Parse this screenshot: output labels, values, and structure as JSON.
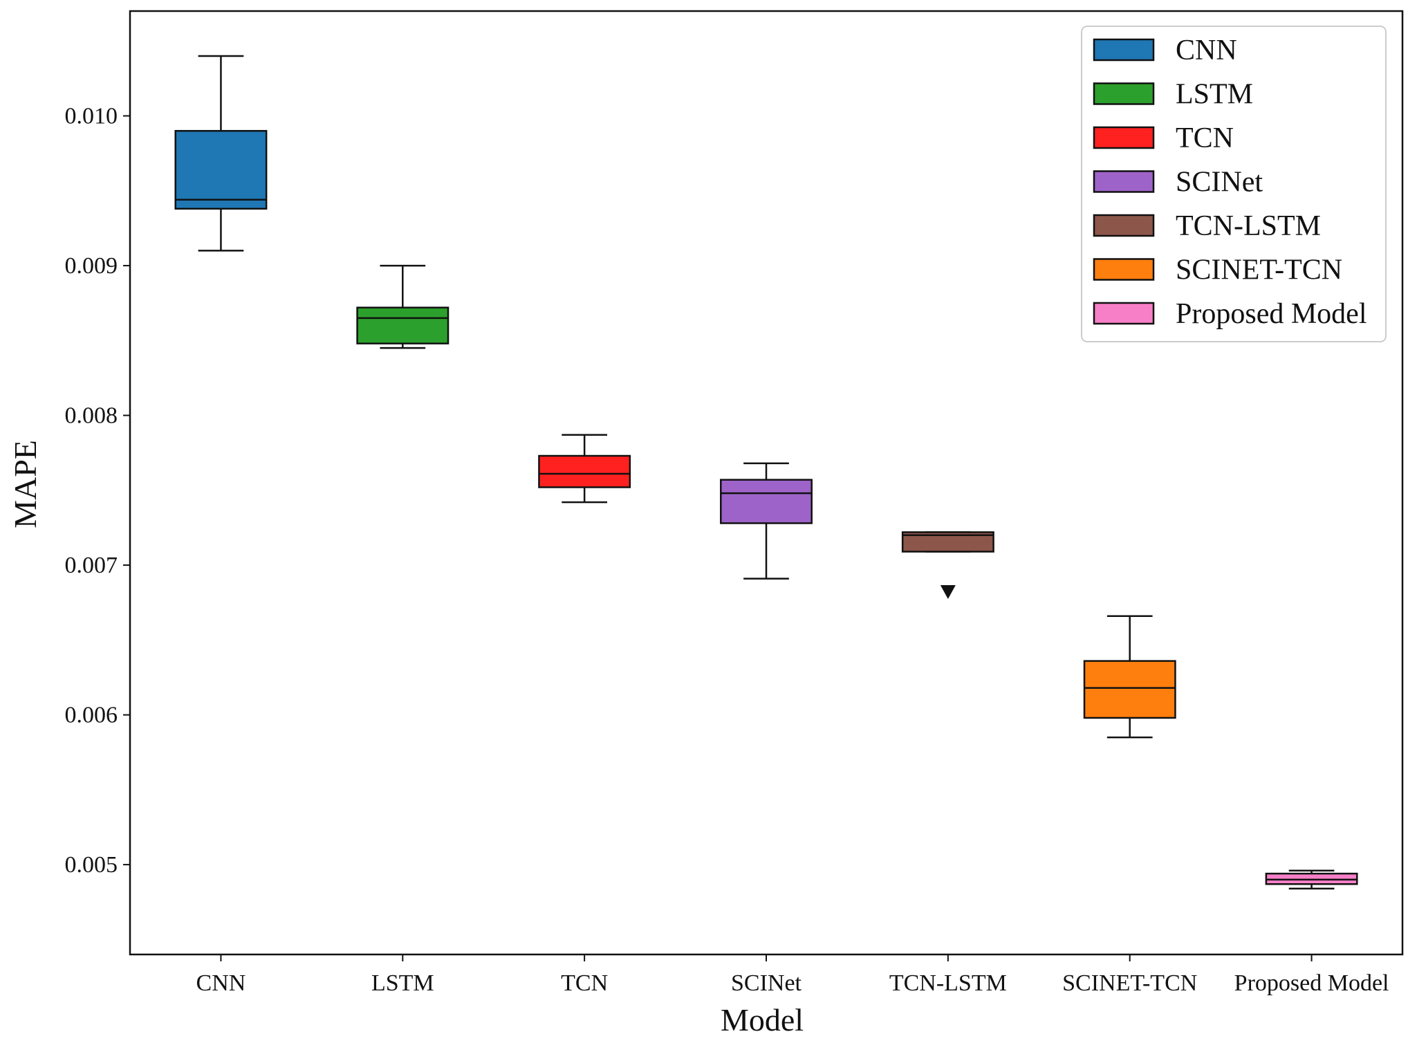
{
  "chart_data": {
    "type": "box",
    "title": "",
    "xlabel": "Model",
    "ylabel": "MAPE",
    "ylim": [
      0.0044,
      0.0107
    ],
    "yticks": [
      0.005,
      0.006,
      0.007,
      0.008,
      0.009,
      0.01
    ],
    "ytick_labels": [
      "0.005",
      "0.006",
      "0.007",
      "0.008",
      "0.009",
      "0.010"
    ],
    "categories": [
      "CNN",
      "LSTM",
      "TCN",
      "SCINet",
      "TCN-LSTM",
      "SCINET-TCN",
      "Proposed Model"
    ],
    "series": [
      {
        "name": "CNN",
        "color": "#1f77b4",
        "whisker_low": 0.0091,
        "q1": 0.00938,
        "median": 0.00944,
        "q3": 0.0099,
        "whisker_high": 0.0104,
        "outliers": []
      },
      {
        "name": "LSTM",
        "color": "#2ca02c",
        "whisker_low": 0.00845,
        "q1": 0.00848,
        "median": 0.00865,
        "q3": 0.00872,
        "whisker_high": 0.009,
        "outliers": []
      },
      {
        "name": "TCN",
        "color": "#ff2020",
        "whisker_low": 0.00742,
        "q1": 0.00752,
        "median": 0.00761,
        "q3": 0.00773,
        "whisker_high": 0.00787,
        "outliers": []
      },
      {
        "name": "SCINet",
        "color": "#9e63c8",
        "whisker_low": 0.00691,
        "q1": 0.00728,
        "median": 0.00748,
        "q3": 0.00757,
        "whisker_high": 0.00768,
        "outliers": []
      },
      {
        "name": "TCN-LSTM",
        "color": "#8c564b",
        "whisker_low": 0.00709,
        "q1": 0.00709,
        "median": 0.0072,
        "q3": 0.00722,
        "whisker_high": 0.00722,
        "outliers": [
          0.00682
        ]
      },
      {
        "name": "SCINET-TCN",
        "color": "#ff7f0e",
        "whisker_low": 0.00585,
        "q1": 0.00598,
        "median": 0.00618,
        "q3": 0.00636,
        "whisker_high": 0.00666,
        "outliers": []
      },
      {
        "name": "Proposed Model",
        "color": "#f77fc7",
        "whisker_low": 0.00484,
        "q1": 0.00487,
        "median": 0.0049,
        "q3": 0.00494,
        "whisker_high": 0.00496,
        "outliers": []
      }
    ],
    "legend": {
      "position": "top-right",
      "entries": [
        "CNN",
        "LSTM",
        "TCN",
        "SCINet",
        "TCN-LSTM",
        "SCINET-TCN",
        "Proposed Model"
      ]
    },
    "grid": false
  }
}
